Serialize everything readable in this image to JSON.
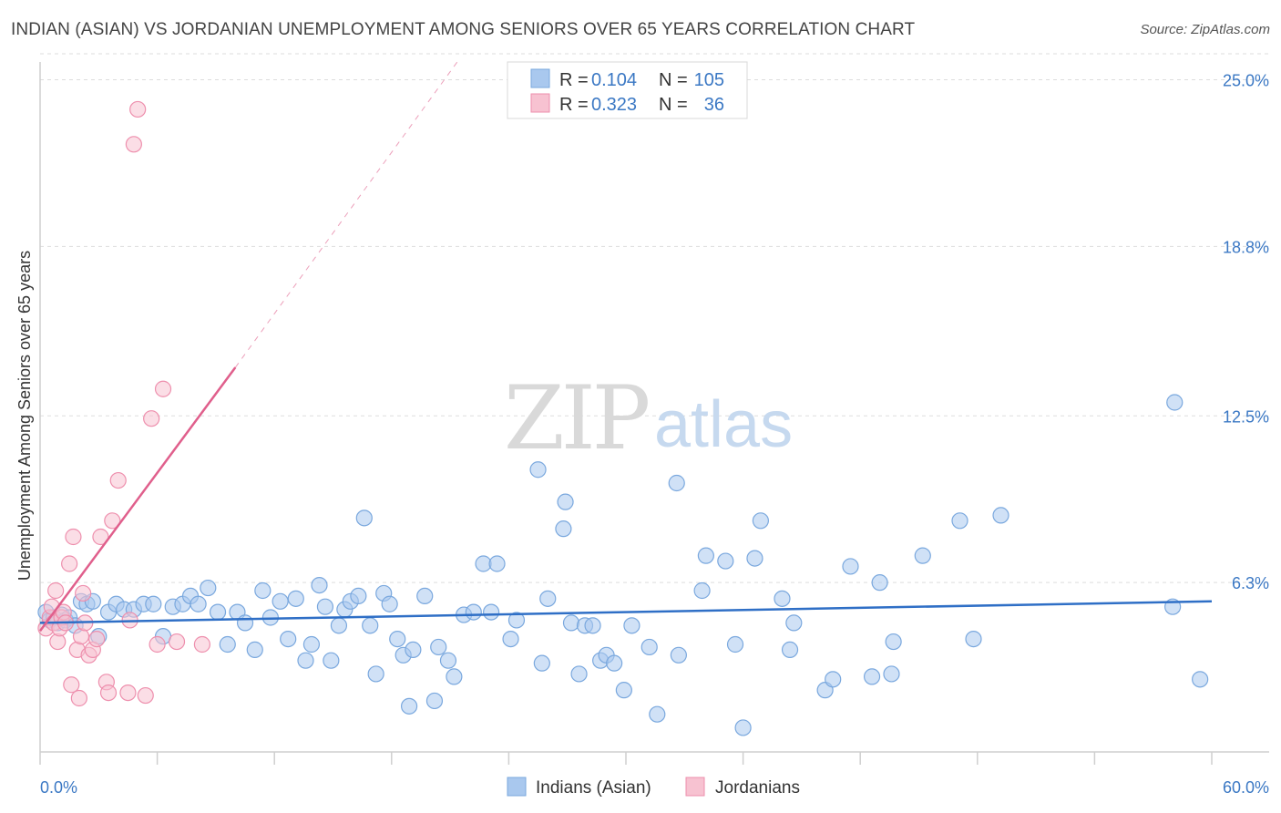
{
  "header": {
    "title": "INDIAN (ASIAN) VS JORDANIAN UNEMPLOYMENT AMONG SENIORS OVER 65 YEARS CORRELATION CHART",
    "source": "Source: ZipAtlas.com"
  },
  "watermark": {
    "zip": "ZIP",
    "atlas": "atlas"
  },
  "legend": {
    "r_label": "R =",
    "n_label": "N =",
    "rows": [
      {
        "r": "0.104",
        "n": "105",
        "color": "#8fb8e6"
      },
      {
        "r": "0.323",
        "n": "36",
        "color": "#f2a9bf"
      }
    ]
  },
  "colors": {
    "blue_fill": "#a9c8ee",
    "blue_stroke": "#7aa8de",
    "blue_line": "#2f6fc6",
    "pink_fill": "#f7c2d1",
    "pink_stroke": "#ee8fad",
    "pink_line": "#e05f8c",
    "grid": "#dddddd",
    "tick_text": "#3b78c4"
  },
  "chart_data": {
    "type": "scatter",
    "title": "INDIAN (ASIAN) VS JORDANIAN UNEMPLOYMENT AMONG SENIORS OVER 65 YEARS CORRELATION CHART",
    "xlabel": "",
    "ylabel": "Unemployment Among Seniors over 65 years",
    "xlim": [
      0,
      60
    ],
    "ylim": [
      0,
      26
    ],
    "x_tick_labels": [
      "0.0%",
      "60.0%"
    ],
    "y_ticks": [
      6.3,
      12.5,
      18.8,
      25.0
    ],
    "y_tick_labels": [
      "6.3%",
      "12.5%",
      "18.8%",
      "25.0%"
    ],
    "grid": true,
    "legend_position": "top-center",
    "series": [
      {
        "name": "Indians (Asian)",
        "color": "#a9c8ee",
        "trend": {
          "x": [
            0,
            60
          ],
          "y": [
            4.8,
            5.6
          ]
        },
        "points": [
          [
            0.3,
            5.2
          ],
          [
            0.5,
            4.9
          ],
          [
            0.7,
            5.0
          ],
          [
            0.9,
            4.8
          ],
          [
            1.1,
            5.1
          ],
          [
            1.3,
            4.9
          ],
          [
            1.5,
            5.0
          ],
          [
            1.8,
            4.7
          ],
          [
            2.1,
            5.6
          ],
          [
            2.4,
            5.5
          ],
          [
            2.7,
            5.6
          ],
          [
            3.0,
            4.3
          ],
          [
            3.5,
            5.2
          ],
          [
            3.9,
            5.5
          ],
          [
            4.3,
            5.3
          ],
          [
            4.8,
            5.3
          ],
          [
            5.3,
            5.5
          ],
          [
            5.8,
            5.5
          ],
          [
            6.3,
            4.3
          ],
          [
            6.8,
            5.4
          ],
          [
            7.3,
            5.5
          ],
          [
            7.7,
            5.8
          ],
          [
            8.1,
            5.5
          ],
          [
            8.6,
            6.1
          ],
          [
            9.1,
            5.2
          ],
          [
            9.6,
            4.0
          ],
          [
            10.1,
            5.2
          ],
          [
            10.5,
            4.8
          ],
          [
            11.0,
            3.8
          ],
          [
            11.4,
            6.0
          ],
          [
            11.8,
            5.0
          ],
          [
            12.3,
            5.6
          ],
          [
            12.7,
            4.2
          ],
          [
            13.1,
            5.7
          ],
          [
            13.6,
            3.4
          ],
          [
            13.9,
            4.0
          ],
          [
            14.3,
            6.2
          ],
          [
            14.6,
            5.4
          ],
          [
            14.9,
            3.4
          ],
          [
            15.3,
            4.7
          ],
          [
            15.6,
            5.3
          ],
          [
            15.9,
            5.6
          ],
          [
            16.3,
            5.8
          ],
          [
            16.6,
            8.7
          ],
          [
            16.9,
            4.7
          ],
          [
            17.2,
            2.9
          ],
          [
            17.6,
            5.9
          ],
          [
            17.9,
            5.5
          ],
          [
            18.3,
            4.2
          ],
          [
            18.6,
            3.6
          ],
          [
            18.9,
            1.7
          ],
          [
            19.1,
            3.8
          ],
          [
            19.7,
            5.8
          ],
          [
            20.2,
            1.9
          ],
          [
            20.4,
            3.9
          ],
          [
            20.9,
            3.4
          ],
          [
            21.2,
            2.8
          ],
          [
            21.7,
            5.1
          ],
          [
            22.2,
            5.2
          ],
          [
            22.7,
            7.0
          ],
          [
            23.1,
            5.2
          ],
          [
            23.4,
            7.0
          ],
          [
            24.1,
            4.2
          ],
          [
            24.4,
            4.9
          ],
          [
            25.5,
            10.5
          ],
          [
            25.7,
            3.3
          ],
          [
            26.0,
            5.7
          ],
          [
            26.8,
            8.3
          ],
          [
            26.9,
            9.3
          ],
          [
            27.2,
            4.8
          ],
          [
            27.6,
            2.9
          ],
          [
            27.9,
            4.7
          ],
          [
            28.3,
            4.7
          ],
          [
            28.7,
            3.4
          ],
          [
            29.0,
            3.6
          ],
          [
            29.4,
            3.3
          ],
          [
            29.9,
            2.3
          ],
          [
            30.3,
            4.7
          ],
          [
            31.2,
            3.9
          ],
          [
            31.6,
            1.4
          ],
          [
            32.6,
            10.0
          ],
          [
            32.7,
            3.6
          ],
          [
            33.9,
            6.0
          ],
          [
            34.1,
            7.3
          ],
          [
            35.1,
            7.1
          ],
          [
            35.6,
            4.0
          ],
          [
            36.0,
            0.9
          ],
          [
            36.6,
            7.2
          ],
          [
            36.9,
            8.6
          ],
          [
            38.0,
            5.7
          ],
          [
            38.4,
            3.8
          ],
          [
            38.6,
            4.8
          ],
          [
            40.2,
            2.3
          ],
          [
            40.6,
            2.7
          ],
          [
            41.5,
            6.9
          ],
          [
            42.6,
            2.8
          ],
          [
            43.0,
            6.3
          ],
          [
            43.6,
            2.9
          ],
          [
            43.7,
            4.1
          ],
          [
            45.2,
            7.3
          ],
          [
            47.1,
            8.6
          ],
          [
            47.8,
            4.2
          ],
          [
            49.2,
            8.8
          ],
          [
            58.0,
            5.4
          ],
          [
            59.4,
            2.7
          ],
          [
            58.1,
            13.0
          ]
        ]
      },
      {
        "name": "Jordanians",
        "color": "#f7c2d1",
        "trend": {
          "x": [
            0,
            10
          ],
          "y": [
            4.5,
            14.3
          ],
          "dashed_to": {
            "x": 21.5,
            "y": 25.8
          }
        },
        "points": [
          [
            0.3,
            4.6
          ],
          [
            0.5,
            5.0
          ],
          [
            0.6,
            5.4
          ],
          [
            0.7,
            4.8
          ],
          [
            0.8,
            6.0
          ],
          [
            0.9,
            4.1
          ],
          [
            1.0,
            4.6
          ],
          [
            1.1,
            5.0
          ],
          [
            1.2,
            5.2
          ],
          [
            1.3,
            4.8
          ],
          [
            1.5,
            7.0
          ],
          [
            1.6,
            2.5
          ],
          [
            1.7,
            8.0
          ],
          [
            1.9,
            3.8
          ],
          [
            2.0,
            2.0
          ],
          [
            2.1,
            4.3
          ],
          [
            2.2,
            5.9
          ],
          [
            2.3,
            4.8
          ],
          [
            2.5,
            3.6
          ],
          [
            2.7,
            3.8
          ],
          [
            2.9,
            4.2
          ],
          [
            3.1,
            8.0
          ],
          [
            3.4,
            2.6
          ],
          [
            3.5,
            2.2
          ],
          [
            3.7,
            8.6
          ],
          [
            4.0,
            10.1
          ],
          [
            4.5,
            2.2
          ],
          [
            4.6,
            4.9
          ],
          [
            4.8,
            22.6
          ],
          [
            5.0,
            23.9
          ],
          [
            5.4,
            2.1
          ],
          [
            5.7,
            12.4
          ],
          [
            6.0,
            4.0
          ],
          [
            6.3,
            13.5
          ],
          [
            7.0,
            4.1
          ],
          [
            8.3,
            4.0
          ]
        ]
      }
    ]
  },
  "bottom_legend": {
    "items": [
      {
        "label": "Indians (Asian)"
      },
      {
        "label": "Jordanians"
      }
    ]
  }
}
